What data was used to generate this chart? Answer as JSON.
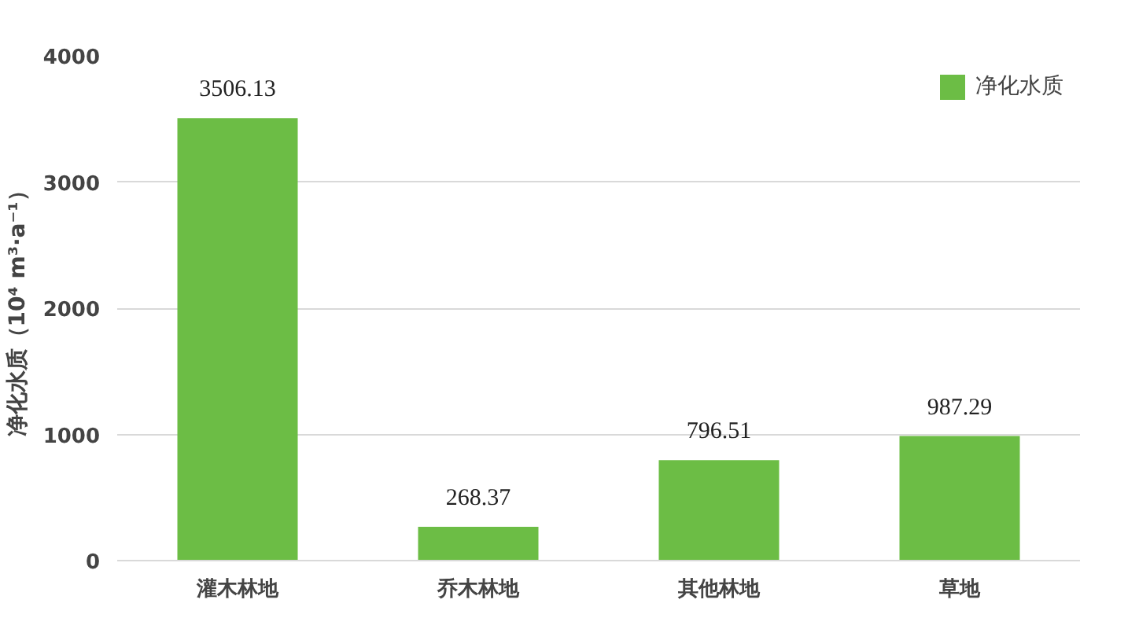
{
  "chart_data": {
    "type": "bar",
    "ylabel": "净化水质（10⁴ m³·a⁻¹）",
    "categories": [
      "灌木林地",
      "乔木林地",
      "其他林地",
      "草地"
    ],
    "series": [
      {
        "name": "净化水质",
        "color": "#6cbd45",
        "values": [
          3506.13,
          268.37,
          796.51,
          987.29
        ]
      }
    ],
    "ylim": [
      0,
      4000
    ],
    "yticks": [
      0,
      1000,
      2000,
      3000,
      4000
    ],
    "grid": "y",
    "legend": "top right",
    "data_labels": true
  }
}
